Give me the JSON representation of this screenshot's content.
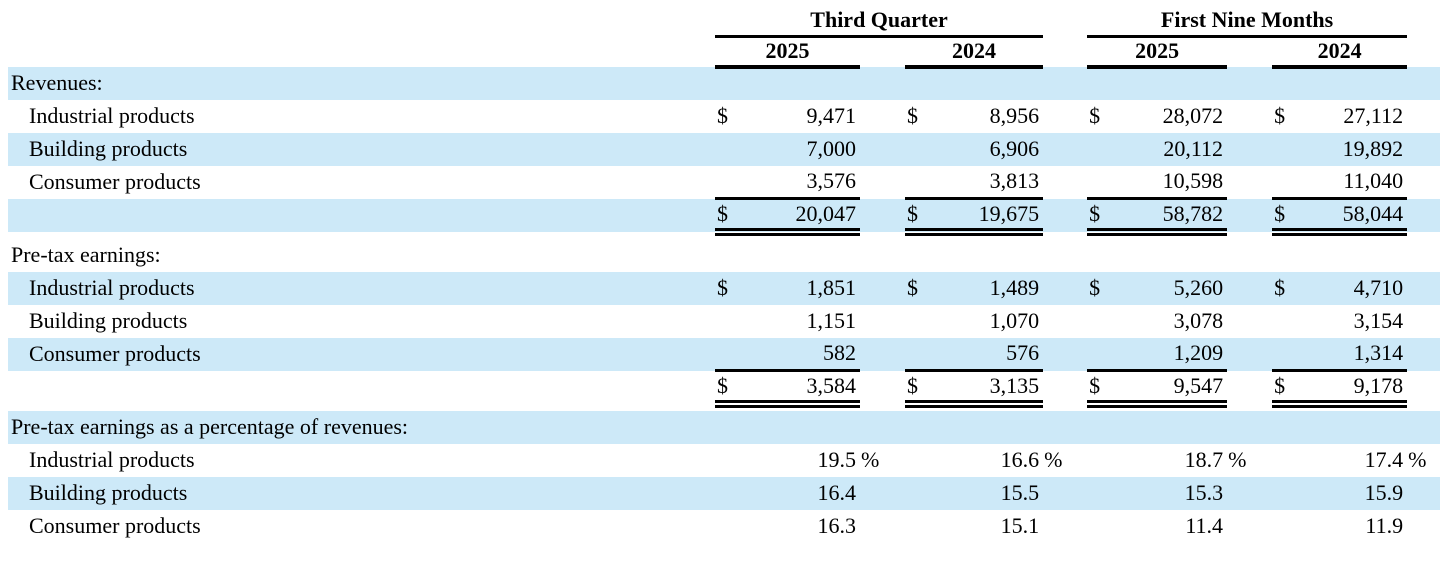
{
  "symbols": {
    "dollar": "$",
    "percent": "%"
  },
  "colors": {
    "stripe": "#cde9f8",
    "text": "#000000",
    "background": "#ffffff"
  },
  "header": {
    "groups": [
      {
        "label": "Third Quarter",
        "years": [
          "2025",
          "2024"
        ]
      },
      {
        "label": "First Nine Months",
        "years": [
          "2025",
          "2024"
        ]
      }
    ]
  },
  "table": {
    "sections": [
      {
        "title": "Revenues:",
        "rows": [
          {
            "label": "Industrial products",
            "dollar": true,
            "percent": false,
            "underline": false,
            "values": [
              "9,471",
              "8,956",
              "28,072",
              "27,112"
            ]
          },
          {
            "label": "Building products",
            "dollar": false,
            "percent": false,
            "underline": false,
            "values": [
              "7,000",
              "6,906",
              "20,112",
              "19,892"
            ]
          },
          {
            "label": "Consumer products",
            "dollar": false,
            "percent": false,
            "underline": true,
            "values": [
              "3,576",
              "3,813",
              "10,598",
              "11,040"
            ]
          }
        ],
        "total": {
          "dollar": true,
          "values": [
            "20,047",
            "19,675",
            "58,782",
            "58,044"
          ]
        }
      },
      {
        "title": "Pre-tax earnings:",
        "rows": [
          {
            "label": "Industrial products",
            "dollar": true,
            "percent": false,
            "underline": false,
            "values": [
              "1,851",
              "1,489",
              "5,260",
              "4,710"
            ]
          },
          {
            "label": "Building products",
            "dollar": false,
            "percent": false,
            "underline": false,
            "values": [
              "1,151",
              "1,070",
              "3,078",
              "3,154"
            ]
          },
          {
            "label": "Consumer products",
            "dollar": false,
            "percent": false,
            "underline": true,
            "values": [
              "582",
              "576",
              "1,209",
              "1,314"
            ]
          }
        ],
        "total": {
          "dollar": true,
          "values": [
            "3,584",
            "3,135",
            "9,547",
            "9,178"
          ]
        }
      },
      {
        "title": "Pre-tax earnings as a percentage of revenues:",
        "rows": [
          {
            "label": "Industrial products",
            "dollar": false,
            "percent": true,
            "underline": false,
            "values": [
              "19.5",
              "16.6",
              "18.7",
              "17.4"
            ]
          },
          {
            "label": "Building products",
            "dollar": false,
            "percent": false,
            "underline": false,
            "values": [
              "16.4",
              "15.5",
              "15.3",
              "15.9"
            ]
          },
          {
            "label": "Consumer products",
            "dollar": false,
            "percent": false,
            "underline": false,
            "values": [
              "16.3",
              "15.1",
              "11.4",
              "11.9"
            ]
          }
        ],
        "total": null
      }
    ]
  }
}
